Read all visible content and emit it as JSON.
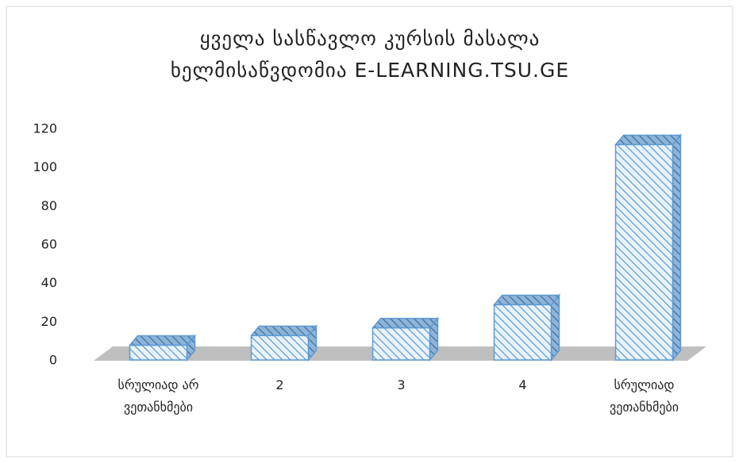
{
  "chart_data": {
    "type": "bar3d",
    "title": [
      "ყველა სასწავლო კურსის მასალა",
      "ხელმისაწვდომია E-LEARNING.TSU.GE"
    ],
    "categories": [
      "სრულიად არ ვეთანხმები",
      "2",
      "3",
      "4",
      "სრულიად ვეთანხმები"
    ],
    "values": [
      8,
      13,
      17,
      29,
      112
    ],
    "color": "#5b9bd5",
    "ylim": [
      0,
      120
    ],
    "yticks": [
      0,
      20,
      40,
      60,
      80,
      100,
      120
    ],
    "grid": false
  }
}
